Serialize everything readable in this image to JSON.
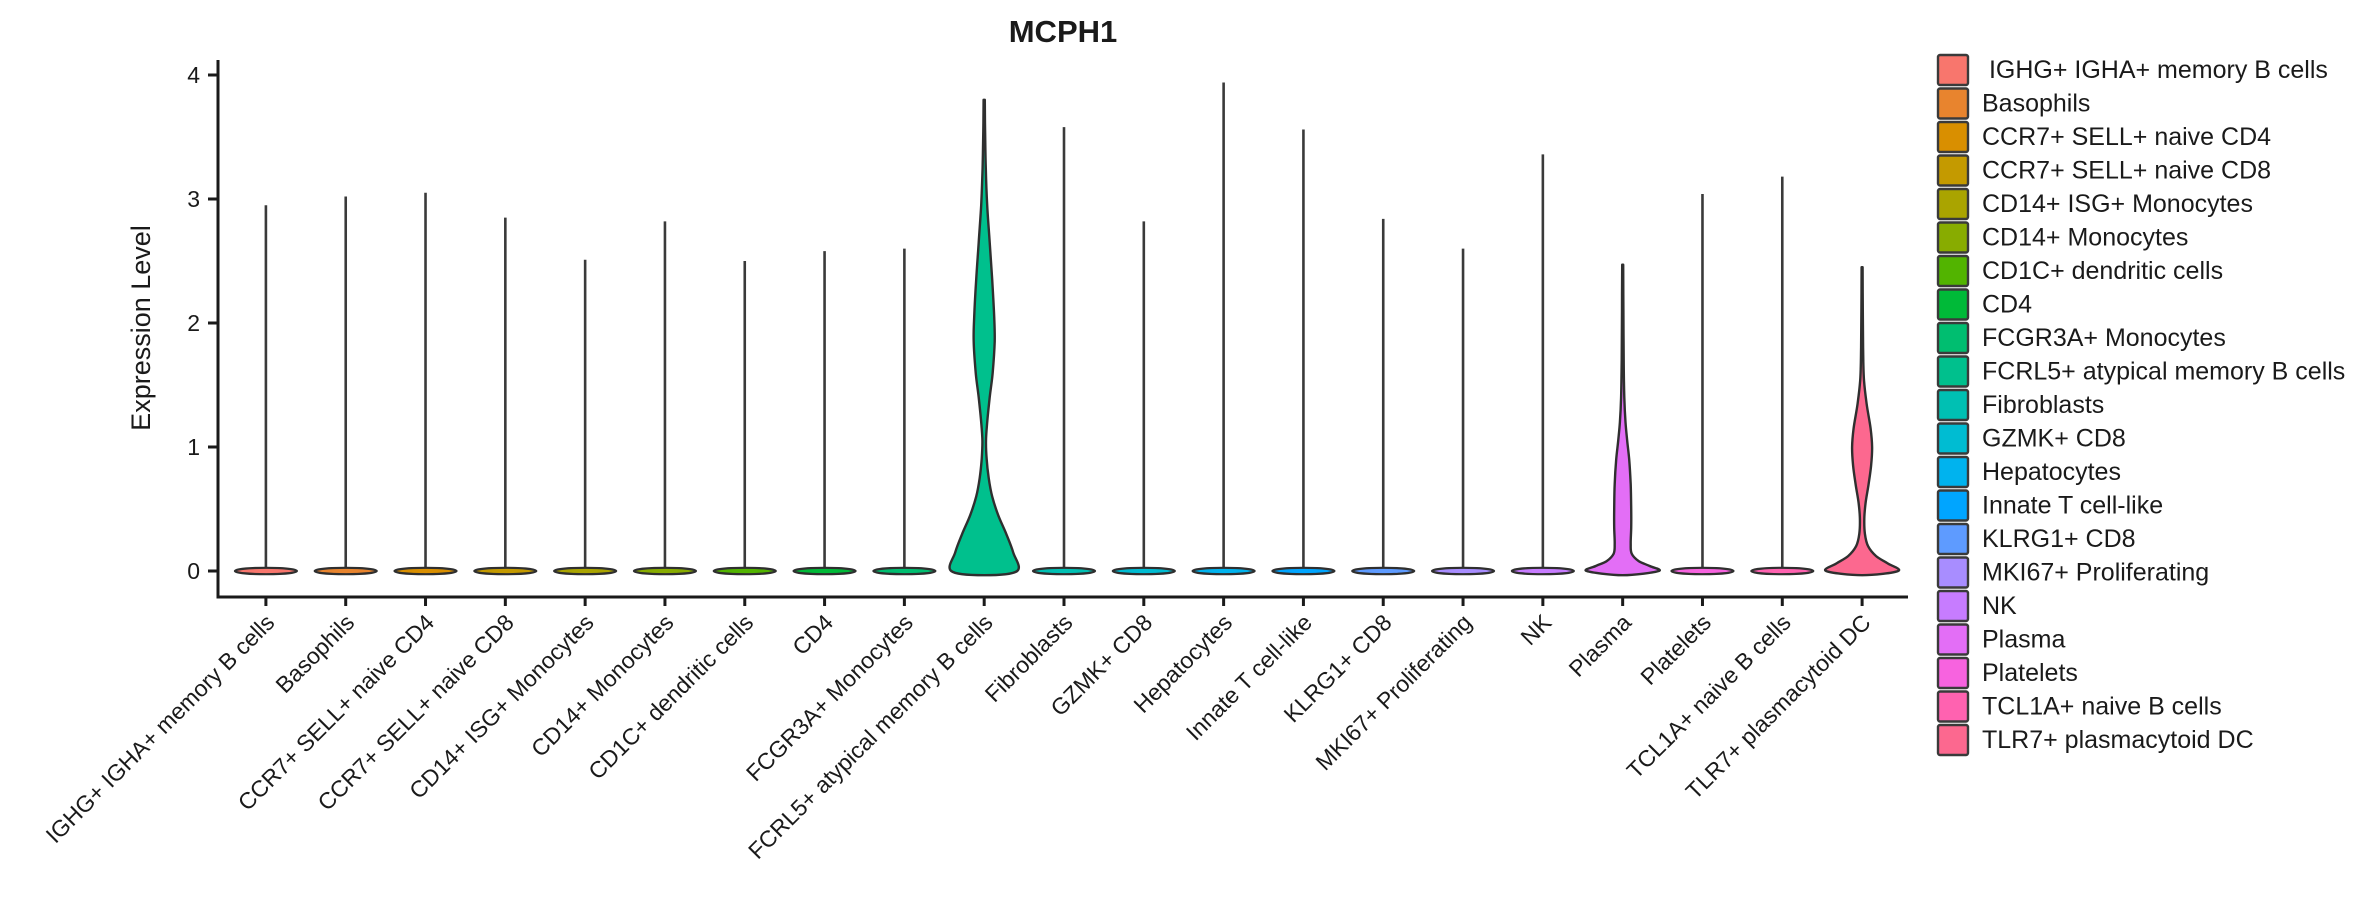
{
  "title": "MCPH1",
  "y_axis": {
    "label": "Expression Level",
    "ticks": [
      0,
      1,
      2,
      3,
      4
    ],
    "range": [
      0,
      4
    ]
  },
  "colors": {
    "background": "#FFFFFF",
    "axis": "#1A1A1A",
    "spike": "#3A3A3A",
    "violin_outline": "#2F2F2F"
  },
  "legend": {
    "items": [
      {
        "label": " IGHG+ IGHA+ memory B cells",
        "color": "#F8766D"
      },
      {
        "label": "Basophils",
        "color": "#E8842E"
      },
      {
        "label": "CCR7+ SELL+ naive CD4",
        "color": "#D98F00"
      },
      {
        "label": "CCR7+ SELL+ naive CD8",
        "color": "#C49A00"
      },
      {
        "label": "CD14+ ISG+ Monocytes",
        "color": "#AAA400"
      },
      {
        "label": "CD14+ Monocytes",
        "color": "#88AC00"
      },
      {
        "label": "CD1C+ dendritic cells",
        "color": "#52B400"
      },
      {
        "label": "CD4",
        "color": "#00BA38"
      },
      {
        "label": "FCGR3A+ Monocytes",
        "color": "#00BE70"
      },
      {
        "label": "FCRL5+ atypical memory B cells",
        "color": "#00C08D"
      },
      {
        "label": "Fibroblasts",
        "color": "#00C0B3"
      },
      {
        "label": "GZMK+ CD8",
        "color": "#00BCD2"
      },
      {
        "label": "Hepatocytes",
        "color": "#00B3EE"
      },
      {
        "label": "Innate T cell-like",
        "color": "#00A5FF"
      },
      {
        "label": "KLRG1+ CD8",
        "color": "#5E9BFF"
      },
      {
        "label": "MKI67+ Proliferating",
        "color": "#A88DFF"
      },
      {
        "label": "NK",
        "color": "#C77CFF"
      },
      {
        "label": "Plasma",
        "color": "#E36EF6"
      },
      {
        "label": "Platelets",
        "color": "#F763DF"
      },
      {
        "label": "TCL1A+ naive B cells",
        "color": "#FF62B0"
      },
      {
        "label": "TLR7+ plasmacytoid DC",
        "color": "#FC688F"
      }
    ]
  },
  "chart_data": {
    "type": "violin",
    "title": "MCPH1",
    "xlabel": "",
    "ylabel": "Expression Level",
    "ylim": [
      0,
      4
    ],
    "yticks": [
      0,
      1,
      2,
      3,
      4
    ],
    "legend_position": "right",
    "grid": false,
    "note": "Each category is a KDE violin of single-cell expression; most mass sits at 0 (flat base) with a thin spike to the max expressing cell. profile = [expression_value, half_width_px].",
    "categories": [
      {
        "name": "IGHG+ IGHA+ memory B cells",
        "color": "#F8766D",
        "max": 2.95
      },
      {
        "name": "Basophils",
        "color": "#E8842E",
        "max": 3.02
      },
      {
        "name": "CCR7+ SELL+ naive CD4",
        "color": "#D98F00",
        "max": 3.05
      },
      {
        "name": "CCR7+ SELL+ naive CD8",
        "color": "#C49A00",
        "max": 2.85
      },
      {
        "name": "CD14+ ISG+ Monocytes",
        "color": "#AAA400",
        "max": 2.51
      },
      {
        "name": "CD14+ Monocytes",
        "color": "#88AC00",
        "max": 2.82
      },
      {
        "name": "CD1C+ dendritic cells",
        "color": "#52B400",
        "max": 2.5
      },
      {
        "name": "CD4",
        "color": "#00BA38",
        "max": 2.58
      },
      {
        "name": "FCGR3A+ Monocytes",
        "color": "#00BE70",
        "max": 2.6
      },
      {
        "name": "FCRL5+ atypical memory B cells",
        "color": "#00C08D",
        "max": 3.8,
        "profile": [
          [
            3.8,
            0.6
          ],
          [
            3.55,
            0.9
          ],
          [
            3.25,
            1.6
          ],
          [
            2.95,
            3.0
          ],
          [
            2.65,
            5.5
          ],
          [
            2.35,
            8.0
          ],
          [
            2.05,
            10.0
          ],
          [
            1.85,
            10.5
          ],
          [
            1.6,
            8.5
          ],
          [
            1.4,
            5.5
          ],
          [
            1.2,
            3.0
          ],
          [
            1.05,
            1.8
          ],
          [
            0.9,
            2.5
          ],
          [
            0.75,
            4.5
          ],
          [
            0.6,
            8.0
          ],
          [
            0.45,
            14.0
          ],
          [
            0.3,
            22.0
          ],
          [
            0.15,
            29.0
          ],
          [
            0.0,
            33.0
          ]
        ]
      },
      {
        "name": "Fibroblasts",
        "color": "#00C0B3",
        "max": 3.58
      },
      {
        "name": "GZMK+ CD8",
        "color": "#00BCD2",
        "max": 2.82
      },
      {
        "name": "Hepatocytes",
        "color": "#00B3EE",
        "max": 3.94
      },
      {
        "name": "Innate T cell-like",
        "color": "#00A5FF",
        "max": 3.56
      },
      {
        "name": "KLRG1+ CD8",
        "color": "#5E9BFF",
        "max": 2.84
      },
      {
        "name": "MKI67+ Proliferating",
        "color": "#A88DFF",
        "max": 2.6
      },
      {
        "name": "NK",
        "color": "#C77CFF",
        "max": 3.36
      },
      {
        "name": "Plasma",
        "color": "#E36EF6",
        "max": 2.47,
        "profile": [
          [
            2.47,
            0.5
          ],
          [
            2.1,
            0.7
          ],
          [
            1.7,
            1.0
          ],
          [
            1.4,
            1.6
          ],
          [
            1.2,
            2.8
          ],
          [
            1.05,
            4.5
          ],
          [
            0.9,
            6.5
          ],
          [
            0.7,
            8.0
          ],
          [
            0.5,
            8.5
          ],
          [
            0.35,
            8.5
          ],
          [
            0.22,
            8.0
          ],
          [
            0.14,
            9.0
          ],
          [
            0.08,
            16.0
          ],
          [
            0.04,
            27.0
          ],
          [
            0.0,
            36.0
          ]
        ]
      },
      {
        "name": "Platelets",
        "color": "#F763DF",
        "max": 3.04
      },
      {
        "name": "TCL1A+ naive B cells",
        "color": "#FF62B0",
        "max": 3.18
      },
      {
        "name": "TLR7+ plasmacytoid DC",
        "color": "#FC688F",
        "max": 2.45,
        "profile": [
          [
            2.45,
            0.5
          ],
          [
            2.1,
            0.7
          ],
          [
            1.8,
            1.0
          ],
          [
            1.55,
            1.8
          ],
          [
            1.35,
            4.5
          ],
          [
            1.15,
            8.5
          ],
          [
            1.0,
            10.0
          ],
          [
            0.85,
            9.0
          ],
          [
            0.7,
            6.5
          ],
          [
            0.55,
            3.5
          ],
          [
            0.42,
            2.2
          ],
          [
            0.3,
            2.8
          ],
          [
            0.2,
            6.0
          ],
          [
            0.12,
            14.0
          ],
          [
            0.06,
            26.0
          ],
          [
            0.0,
            36.0
          ]
        ]
      }
    ]
  }
}
